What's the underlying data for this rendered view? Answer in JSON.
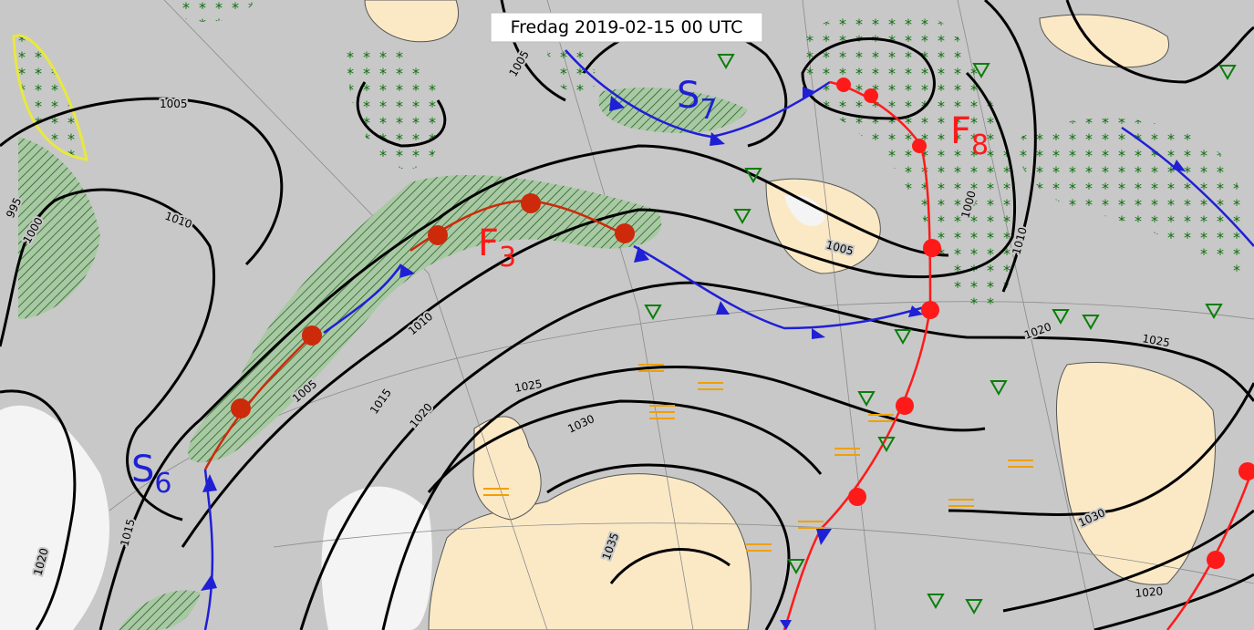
{
  "map": {
    "title": "Fredag 2019-02-15 00 UTC",
    "isobar_labels": [
      "1005",
      "1005",
      "1010",
      "1000",
      "995",
      "1010",
      "1005",
      "1015",
      "1020",
      "1025",
      "1030",
      "1035",
      "1015",
      "1020",
      "1005",
      "1010",
      "1020",
      "1025",
      "1030",
      "1020",
      "1000"
    ],
    "front_labels": [
      {
        "letter": "F",
        "index": "3"
      },
      {
        "letter": "F",
        "index": "8"
      },
      {
        "letter": "S",
        "index": "6"
      },
      {
        "letter": "S",
        "index": "7"
      }
    ]
  }
}
